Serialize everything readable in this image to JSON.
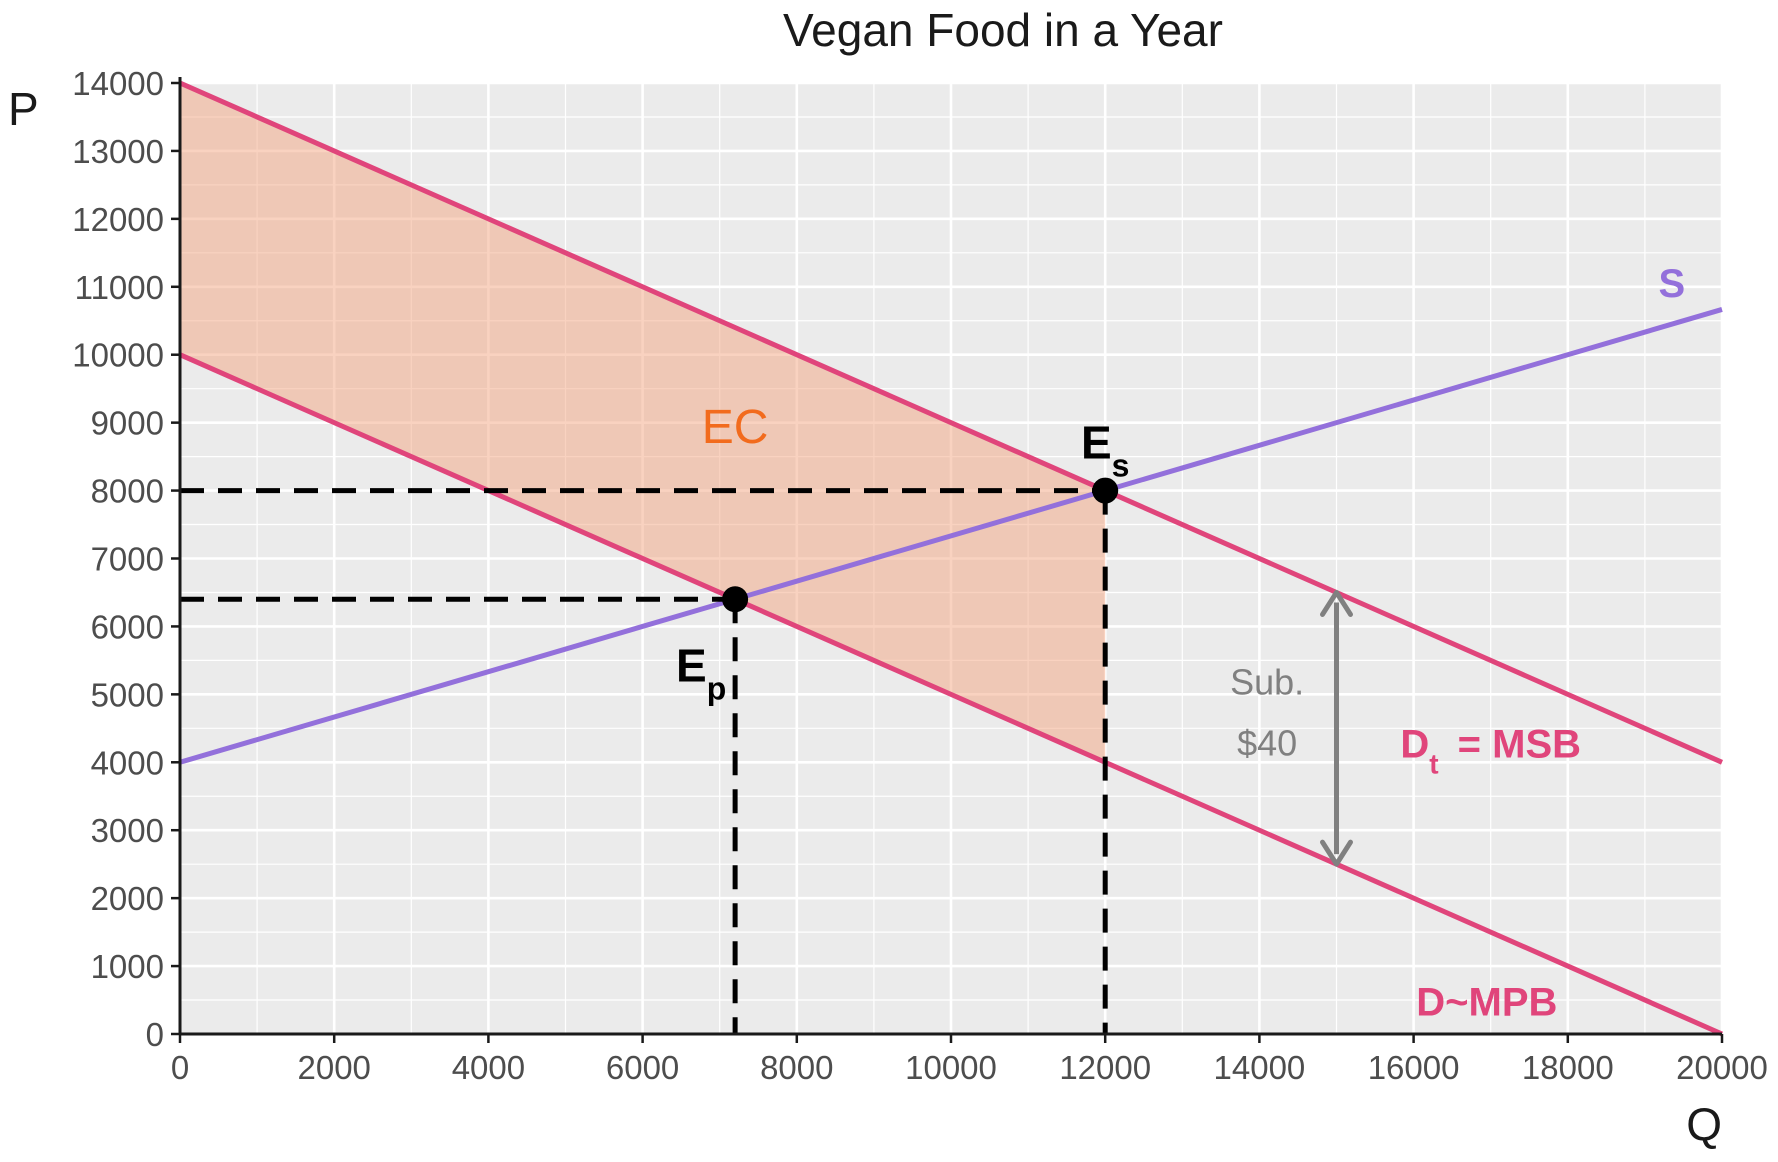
{
  "chart_data": {
    "type": "line",
    "title": "Vegan Food in a Year",
    "xlabel": "Q",
    "ylabel": "P",
    "xlim": [
      0,
      20000
    ],
    "ylim": [
      0,
      14000
    ],
    "x_ticks": [
      0,
      2000,
      4000,
      6000,
      8000,
      10000,
      12000,
      14000,
      16000,
      18000,
      20000
    ],
    "y_ticks": [
      0,
      1000,
      2000,
      3000,
      4000,
      5000,
      6000,
      7000,
      8000,
      9000,
      10000,
      11000,
      12000,
      13000,
      14000
    ],
    "grid": true,
    "series": [
      {
        "name": "S",
        "label": "S",
        "color": "#9370DB",
        "x": [
          0,
          20000
        ],
        "y": [
          4000,
          10666.67
        ]
      },
      {
        "name": "Dt = MSB",
        "label_main": "D",
        "label_sub": "t",
        "label_rest": "= MSB",
        "color": "#E0457B",
        "x": [
          0,
          20000
        ],
        "y": [
          14000,
          4000
        ]
      },
      {
        "name": "D~MPB",
        "label": "D~MPB",
        "color": "#E0457B",
        "x": [
          0,
          20000
        ],
        "y": [
          10000,
          0
        ]
      }
    ],
    "shaded_region": {
      "label": "EC",
      "label_color": "#F26B1D",
      "fill_color": "#F4A582",
      "x": [
        0,
        12000,
        12000,
        0
      ],
      "y": [
        14000,
        8000,
        4000,
        10000
      ]
    },
    "points": [
      {
        "label_main": "E",
        "label_sub": "s",
        "x": 12000,
        "y": 8000
      },
      {
        "label_main": "E",
        "label_sub": "p",
        "x": 7200,
        "y": 6400
      }
    ],
    "reference_lines": [
      {
        "from": [
          0,
          8000
        ],
        "to": [
          12000,
          8000
        ]
      },
      {
        "from": [
          0,
          6400
        ],
        "to": [
          7200,
          6400
        ]
      },
      {
        "from": [
          7200,
          6400
        ],
        "to": [
          7200,
          0
        ]
      },
      {
        "from": [
          12000,
          8000
        ],
        "to": [
          12000,
          0
        ]
      }
    ],
    "subsidy_annotation": {
      "line1": "Sub.",
      "line2": "$40",
      "color": "#808080",
      "x": 15000,
      "y_from": 2500,
      "y_to": 6500
    }
  }
}
